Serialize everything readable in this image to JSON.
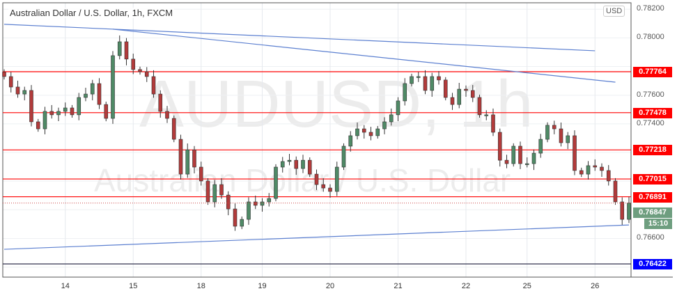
{
  "chart_data": {
    "type": "candlestick",
    "title": "Australian Dollar / U.S. Dollar, 1h, FXCM",
    "watermark": {
      "symbol": "AUDUSD, 1h",
      "description": "Australian Dollar / U.S. Dollar"
    },
    "currency": "USD",
    "ylim": [
      0.7633,
      0.78245
    ],
    "y_ticks": [
      "0.78200",
      "0.78000",
      "0.77600",
      "0.77400",
      "0.76600"
    ],
    "y_tick_values": [
      0.782,
      0.78,
      0.776,
      0.774,
      0.766
    ],
    "x_ticks": [
      "14",
      "15",
      "18",
      "19",
      "20",
      "21",
      "22",
      "25",
      "26"
    ],
    "x_tick_bar_index": [
      9,
      19,
      29,
      38,
      48,
      58,
      68,
      77,
      87
    ],
    "grid": true,
    "approx_closes": [
      0.7773,
      0.77657,
      0.77608,
      0.77633,
      0.77414,
      0.77365,
      0.77487,
      0.77463,
      0.77487,
      0.77511,
      0.77463,
      0.77584,
      0.77608,
      0.77681,
      0.77535,
      0.77438,
      0.77876,
      0.77973,
      0.77852,
      0.77779,
      0.77764,
      0.7773,
      0.77608,
      0.77487,
      0.77438,
      0.77292,
      0.77049,
      0.77219,
      0.77098,
      0.77001,
      0.76855,
      0.76976,
      0.76903,
      0.76806,
      0.76685,
      0.76733,
      0.76855,
      0.76831,
      0.76855,
      0.76879,
      0.77098,
      0.77137,
      0.77146,
      0.77088,
      0.77146,
      0.77049,
      0.76976,
      0.76952,
      0.76928,
      0.77098,
      0.77244,
      0.77317,
      0.77365,
      0.77341,
      0.77317,
      0.77365,
      0.77414,
      0.77463,
      0.7756,
      0.77681,
      0.7773,
      0.7773,
      0.77633,
      0.7773,
      0.77706,
      0.77584,
      0.77535,
      0.77642,
      0.77633,
      0.77584,
      0.77463,
      0.77463,
      0.77341,
      0.77146,
      0.77122,
      0.77244,
      0.77122,
      0.77122,
      0.77195,
      0.77292,
      0.7739,
      0.77365,
      0.77268,
      0.77317,
      0.77074,
      0.77049,
      0.77108,
      0.77098,
      0.77074,
      0.77001,
      0.76855,
      0.76733,
      0.76847
    ],
    "levels": [
      {
        "price": "0.77764",
        "value": 0.77764,
        "color": "#ff0000"
      },
      {
        "price": "0.77478",
        "value": 0.77478,
        "color": "#ff0000"
      },
      {
        "price": "0.77218",
        "value": 0.77218,
        "color": "#ff0000"
      },
      {
        "price": "0.77015",
        "value": 0.77015,
        "color": "#ff0000"
      },
      {
        "price": "0.76891",
        "value": 0.76891,
        "color": "#ff0000"
      },
      {
        "price": "0.76422",
        "value": 0.76422,
        "color": "#0000ff"
      }
    ],
    "trendlines": [
      {
        "from": [
          0,
          0.78095
        ],
        "to": [
          87,
          0.7791
        ]
      },
      {
        "from": [
          16,
          0.78061
        ],
        "to": [
          90,
          0.77691
        ]
      },
      {
        "from": [
          0,
          0.76524
        ],
        "to": [
          92,
          0.76694
        ]
      }
    ],
    "current_price": {
      "price": "0.76847",
      "value": 0.76847,
      "countdown": "15:10",
      "color": "#6e9e7f"
    },
    "colors": {
      "up": "#4f8a66",
      "down": "#b23b3b",
      "trendline": "#5b7fd0"
    }
  }
}
